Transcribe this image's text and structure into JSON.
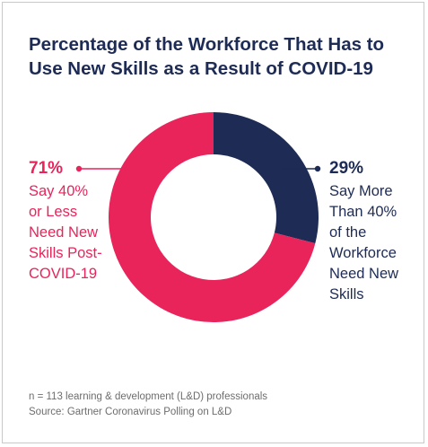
{
  "title": "Percentage of the Workforce That Has to Use New Skills as a Result of COVID-19",
  "footnote": {
    "sample": "n = 113 learning & development (L&D) professionals",
    "source": "Source: Gartner Coronavirus Polling on L&D"
  },
  "labels": {
    "left": {
      "pct": "71%",
      "lines": [
        "Say 40%",
        "or Less",
        "Need New",
        "Skills Post-",
        "COVID-19"
      ]
    },
    "right": {
      "pct": "29%",
      "lines": [
        "Say More",
        "Than 40%",
        "of the",
        "Workforce",
        "Need New",
        "Skills"
      ]
    }
  },
  "chart_data": {
    "type": "pie",
    "style": "donut",
    "slices": [
      {
        "label": "Say 40% or Less Need New Skills Post-COVID-19",
        "value": 71,
        "color": "#e8245b"
      },
      {
        "label": "Say More Than 40% of the Workforce Need New Skills",
        "value": 29,
        "color": "#1d2b55"
      }
    ],
    "start": "top",
    "direction": "clockwise-from-small-slice"
  }
}
